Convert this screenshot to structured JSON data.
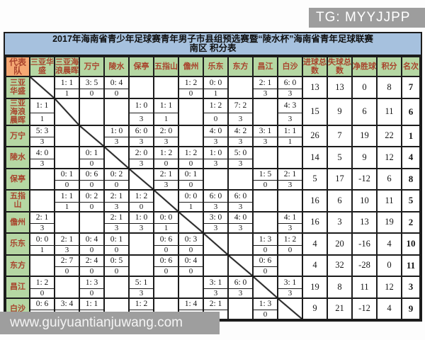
{
  "badge": {
    "text": "TG: MYYJJPP"
  },
  "watermark": {
    "text": "www.guiyuantianjuwang.com"
  },
  "title": {
    "line1": "2017年海南省青少年足球赛青年男子市县组预选赛暨“陵水杯”海南省青年足球联赛",
    "line2": "南区 积分表"
  },
  "colors": {
    "title_bg": "#a6c1de",
    "header_green": "#b5d7a3",
    "corner_orange": "#f5a873",
    "header_text_red": "#a8432c",
    "badge_gray": "#9d9d9d",
    "watermark_gray": "#9e9e9e"
  },
  "table": {
    "corner_label": "代表队",
    "opponent_columns": [
      "三亚华盛",
      "三亚海浪晨晖",
      "万宁",
      "陵水",
      "保亭",
      "五指山",
      "儋州",
      "乐东",
      "东方",
      "昌江",
      "白沙"
    ],
    "summary_columns": [
      "进球总数",
      "失球总数",
      "净胜球",
      "积分",
      "名次"
    ],
    "rows": [
      {
        "team": "三亚华盛",
        "results": [
          "self",
          {
            "score": "1: 1",
            "points": "1"
          },
          {
            "score": "3: 5",
            "points": "0"
          },
          {
            "score": "0: 4",
            "points": "0"
          },
          null,
          null,
          {
            "score": "1: 2",
            "points": "0"
          },
          {
            "score": "0: 0",
            "points": "1"
          },
          null,
          {
            "score": "2: 1",
            "points": "3"
          },
          {
            "score": "6: 0",
            "points": "3"
          }
        ],
        "totals": {
          "goals_for": "13",
          "goals_against": "13",
          "goal_diff": "0",
          "points": "8",
          "rank": "7"
        }
      },
      {
        "team": "三亚海浪晨晖",
        "results": [
          {
            "score": "1: 1",
            "points": "1"
          },
          "self",
          null,
          null,
          {
            "score": "1: 0",
            "points": "3"
          },
          {
            "score": "1: 1",
            "points": "1"
          },
          null,
          {
            "score": "1: 2",
            "points": "0"
          },
          {
            "score": "7: 2",
            "points": "3"
          },
          null,
          {
            "score": "4: 3",
            "points": "3"
          }
        ],
        "totals": {
          "goals_for": "15",
          "goals_against": "9",
          "goal_diff": "6",
          "points": "11",
          "rank": "6"
        }
      },
      {
        "team": "万宁",
        "results": [
          {
            "score": "5: 3",
            "points": "3"
          },
          null,
          "self",
          {
            "score": "1: 0",
            "points": "3"
          },
          {
            "score": "6: 0",
            "points": "3"
          },
          {
            "score": "2: 0",
            "points": "3"
          },
          null,
          {
            "score": "4: 0",
            "points": "3"
          },
          {
            "score": "4: 2",
            "points": "3"
          },
          {
            "score": "3: 1",
            "points": "3"
          },
          {
            "score": "1: 1",
            "points": "1"
          }
        ],
        "totals": {
          "goals_for": "26",
          "goals_against": "7",
          "goal_diff": "19",
          "points": "22",
          "rank": "1"
        }
      },
      {
        "team": "陵水",
        "results": [
          {
            "score": "4: 0",
            "points": "3"
          },
          null,
          {
            "score": "0: 1",
            "points": "0"
          },
          "self",
          {
            "score": "2: 0",
            "points": "3"
          },
          {
            "score": "1: 2",
            "points": "0"
          },
          {
            "score": "1: 2",
            "points": "0"
          },
          {
            "score": "1: 0",
            "points": "3"
          },
          {
            "score": "5: 0",
            "points": "3"
          },
          null,
          null
        ],
        "totals": {
          "goals_for": "14",
          "goals_against": "5",
          "goal_diff": "9",
          "points": "12",
          "rank": "4"
        }
      },
      {
        "team": "保亭",
        "results": [
          null,
          {
            "score": "0: 1",
            "points": "0"
          },
          {
            "score": "0: 6",
            "points": "0"
          },
          {
            "score": "0: 2",
            "points": "0"
          },
          "self",
          {
            "score": "2: 1",
            "points": "3"
          },
          {
            "score": "0: 1",
            "points": "0"
          },
          null,
          null,
          {
            "score": "1: 5",
            "points": "0"
          },
          {
            "score": "2: 1",
            "points": "3"
          }
        ],
        "totals": {
          "goals_for": "5",
          "goals_against": "17",
          "goal_diff": "-12",
          "points": "6",
          "rank": "8"
        }
      },
      {
        "team": "五指山",
        "results": [
          null,
          {
            "score": "1: 1",
            "points": "1"
          },
          {
            "score": "0: 2",
            "points": "0"
          },
          {
            "score": "2: 1",
            "points": "3"
          },
          {
            "score": "1: 2",
            "points": "0"
          },
          "self",
          {
            "score": "0: 0",
            "points": "1"
          },
          {
            "score": "6: 0",
            "points": "3"
          },
          {
            "score": "6: 0",
            "points": "3"
          },
          null,
          null
        ],
        "totals": {
          "goals_for": "16",
          "goals_against": "6",
          "goal_diff": "10",
          "points": "11",
          "rank": "5"
        }
      },
      {
        "team": "儋州",
        "results": [
          {
            "score": "2: 1",
            "points": "3"
          },
          null,
          null,
          {
            "score": "2: 1",
            "points": "3"
          },
          {
            "score": "1: 0",
            "points": "3"
          },
          {
            "score": "0: 0",
            "points": "1"
          },
          "self",
          {
            "score": "3: 0",
            "points": "3"
          },
          {
            "score": "4: 0",
            "points": "3"
          },
          null,
          {
            "score": "4: 1",
            "points": "3"
          }
        ],
        "totals": {
          "goals_for": "16",
          "goals_against": "3",
          "goal_diff": "13",
          "points": "19",
          "rank": "2"
        }
      },
      {
        "team": "乐东",
        "results": [
          {
            "score": "0: 0",
            "points": "1"
          },
          {
            "score": "2: 1",
            "points": "3"
          },
          {
            "score": "0: 4",
            "points": "0"
          },
          {
            "score": "0: 1",
            "points": "0"
          },
          null,
          {
            "score": "0: 6",
            "points": "0"
          },
          {
            "score": "0: 3",
            "points": "0"
          },
          "self",
          null,
          {
            "score": "1: 3",
            "points": "0"
          },
          {
            "score": "1: 2",
            "points": "0"
          }
        ],
        "totals": {
          "goals_for": "4",
          "goals_against": "20",
          "goal_diff": "-16",
          "points": "4",
          "rank": "10"
        }
      },
      {
        "team": "东方",
        "results": [
          null,
          {
            "score": "2: 7",
            "points": "0"
          },
          {
            "score": "2: 4",
            "points": "0"
          },
          {
            "score": "0: 5",
            "points": "0"
          },
          null,
          {
            "score": "0: 6",
            "points": "0"
          },
          {
            "score": "0: 4",
            "points": "0"
          },
          null,
          "self",
          {
            "score": "0: 6",
            "points": "0"
          },
          null
        ],
        "totals": {
          "goals_for": "4",
          "goals_against": "32",
          "goal_diff": "-28",
          "points": "0",
          "rank": "11"
        }
      },
      {
        "team": "昌江",
        "results": [
          {
            "score": "1: 2",
            "points": "0"
          },
          null,
          {
            "score": "1: 3",
            "points": "0"
          },
          null,
          {
            "score": "5: 1",
            "points": "3"
          },
          null,
          null,
          {
            "score": "3: 1",
            "points": "3"
          },
          {
            "score": "6: 0",
            "points": "3"
          },
          "self",
          {
            "score": "3: 1",
            "points": "3"
          }
        ],
        "totals": {
          "goals_for": "19",
          "goals_against": "8",
          "goal_diff": "11",
          "points": "12",
          "rank": "3"
        }
      },
      {
        "team": "白沙",
        "results": [
          {
            "score": "0: 6",
            "points": "0"
          },
          {
            "score": "3: 4",
            "points": "0"
          },
          {
            "score": "1: 1",
            "points": "1"
          },
          null,
          {
            "score": "1: 2",
            "points": "0"
          },
          null,
          {
            "score": "1: 4",
            "points": "0"
          },
          {
            "score": "2: 1",
            "points": "3"
          },
          null,
          {
            "score": "1: 3",
            "points": "0"
          },
          "self"
        ],
        "totals": {
          "goals_for": "9",
          "goals_against": "21",
          "goal_diff": "-12",
          "points": "4",
          "rank": "9"
        }
      }
    ]
  }
}
